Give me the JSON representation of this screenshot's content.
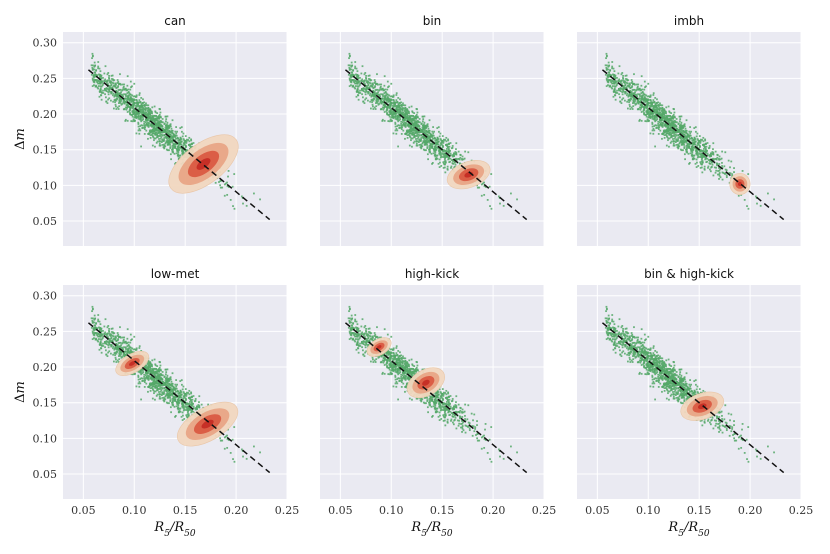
{
  "chart_data": {
    "type": "scatter",
    "layout": "2x3 small multiples",
    "xlabel_html": [
      "R",
      "5",
      "/R",
      "50"
    ],
    "ylabel_html": [
      "Δ",
      "m"
    ],
    "xlim": [
      0.03,
      0.25
    ],
    "ylim": [
      0.015,
      0.315
    ],
    "xticks": [
      0.05,
      0.1,
      0.15,
      0.2,
      0.25
    ],
    "xtick_labels": [
      "0.05",
      "0.10",
      "0.15",
      "0.20",
      "0.25"
    ],
    "yticks": [
      0.05,
      0.1,
      0.15,
      0.2,
      0.25,
      0.3
    ],
    "ytick_labels": [
      "0.05",
      "0.10",
      "0.15",
      "0.20",
      "0.25",
      "0.30"
    ],
    "grid": true,
    "reference_line": {
      "style": "dashed",
      "x": [
        0.055,
        0.233
      ],
      "y": [
        0.262,
        0.052
      ]
    },
    "scatter_color": "#55a868",
    "density_colors": [
      "#f1d7bf",
      "#e8a383",
      "#d9553f",
      "#c32a22"
    ],
    "panels": [
      {
        "title": "can",
        "blobs": [
          {
            "cx": 0.168,
            "cy": 0.13,
            "sx": 0.04,
            "sy": 0.028,
            "angle": -37
          }
        ]
      },
      {
        "title": "bin",
        "blobs": [
          {
            "cx": 0.176,
            "cy": 0.115,
            "sx": 0.022,
            "sy": 0.018,
            "angle": -20
          }
        ]
      },
      {
        "title": "imbh",
        "blobs": [
          {
            "cx": 0.19,
            "cy": 0.102,
            "sx": 0.01,
            "sy": 0.015,
            "angle": 0
          }
        ]
      },
      {
        "title": "low-met",
        "blobs": [
          {
            "cx": 0.172,
            "cy": 0.12,
            "sx": 0.033,
            "sy": 0.023,
            "angle": -30
          },
          {
            "cx": 0.098,
            "cy": 0.205,
            "sx": 0.018,
            "sy": 0.013,
            "angle": -30
          }
        ]
      },
      {
        "title": "high-kick",
        "blobs": [
          {
            "cx": 0.134,
            "cy": 0.178,
            "sx": 0.02,
            "sy": 0.018,
            "angle": -30
          },
          {
            "cx": 0.088,
            "cy": 0.228,
            "sx": 0.013,
            "sy": 0.011,
            "angle": -30
          }
        ]
      },
      {
        "title": "bin & high-kick",
        "blobs": [
          {
            "cx": 0.153,
            "cy": 0.145,
            "sx": 0.022,
            "sy": 0.018,
            "angle": -20
          }
        ]
      }
    ]
  }
}
